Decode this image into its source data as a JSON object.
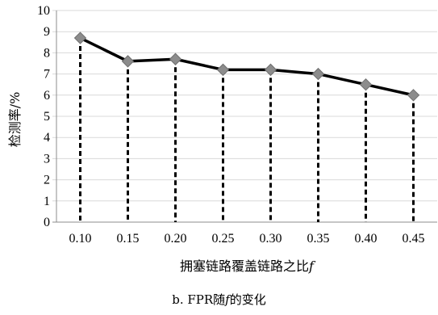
{
  "chart_data": {
    "type": "line",
    "x": [
      "0.10",
      "0.15",
      "0.20",
      "0.25",
      "0.30",
      "0.35",
      "0.40",
      "0.45"
    ],
    "series": [
      {
        "values": [
          8.7,
          7.6,
          7.7,
          7.2,
          7.2,
          7.0,
          6.5,
          6.0
        ]
      }
    ],
    "xlabel_text": "拥塞链路覆盖链路之比",
    "xlabel_var": "f",
    "ylabel": "检测率/%",
    "ylim": [
      0,
      10
    ],
    "yticks": [
      0,
      1,
      2,
      3,
      4,
      5,
      6,
      7,
      8,
      9,
      10
    ],
    "grid": "horizontal",
    "drop_lines": "dashed",
    "line_color": "#000000",
    "marker_color": "#8c8c8c",
    "grid_color": "#d9d9d9"
  },
  "caption": {
    "prefix": "b. FPR随",
    "var": "f",
    "suffix": "的变化"
  }
}
